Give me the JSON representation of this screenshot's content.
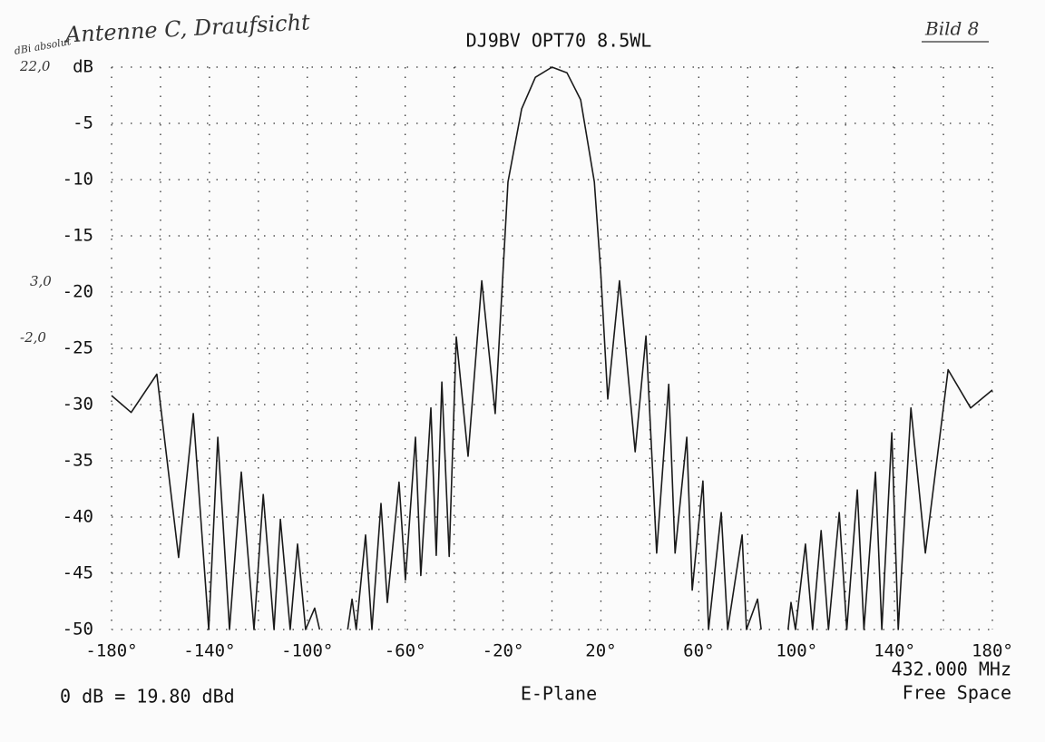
{
  "chart_data": {
    "type": "line",
    "title": "DJ9BV OPT70 8.5WL",
    "x_label": "E-Plane",
    "footer_left": "0 dB = 19.80 dBd",
    "footer_right_1": "432.000 MHz",
    "footer_right_2": "Free Space",
    "handwritten": {
      "caption": "Antenne C, Draufsicht",
      "unit": "dBi absolut",
      "ref_top": "22,0",
      "ref_mid": "3,0",
      "ref_low": "-2,0",
      "figure": "Bild 8"
    },
    "xlim": [
      -180,
      180
    ],
    "ylim": [
      -50,
      0
    ],
    "xticks": [
      {
        "value": -180,
        "label": "-180°"
      },
      {
        "value": -140,
        "label": "-140°"
      },
      {
        "value": -100,
        "label": "-100°"
      },
      {
        "value": -60,
        "label": "-60°"
      },
      {
        "value": -20,
        "label": "-20°"
      },
      {
        "value": 20,
        "label": "20°"
      },
      {
        "value": 60,
        "label": "60°"
      },
      {
        "value": 100,
        "label": "100°"
      },
      {
        "value": 140,
        "label": "140°"
      },
      {
        "value": 180,
        "label": "180°"
      }
    ],
    "xgrid_minor": [
      -160,
      -120,
      -80,
      -40,
      0,
      40,
      80,
      120,
      160
    ],
    "yticks": [
      {
        "value": 0,
        "label": "dB"
      },
      -5,
      -10,
      -15,
      -20,
      -25,
      -30,
      -35,
      -40,
      -45,
      -50
    ],
    "grid": true,
    "grid_style": "dotted",
    "series": [
      {
        "color": "#1a1a1a",
        "x": [
          -180,
          -172,
          -161.5,
          -152.6,
          -146.6,
          -140.3,
          -136.6,
          -131.8,
          -127,
          -121.8,
          -118,
          -113.6,
          -111,
          -107,
          -104,
          -100.7,
          -97,
          -95,
          -88,
          -83.5,
          -81.7,
          -80,
          -76.2,
          -73.6,
          -69.9,
          -67.3,
          -62.5,
          -59.9,
          -55.8,
          -53.6,
          -49.5,
          -47.3,
          -45,
          -42,
          -39.1,
          -34.3,
          -28.7,
          -23.2,
          -18,
          -12.4,
          -6.8,
          0,
          6.1,
          11.7,
          17.3,
          19.9,
          22.8,
          27.6,
          34,
          38.4,
          42.8,
          47.7,
          50.3,
          55.1,
          57.3,
          61.7,
          64,
          69.2,
          71.8,
          77.7,
          79.5,
          84,
          85.5,
          90,
          96.5,
          97.7,
          99.5,
          103.6,
          106.5,
          110,
          113,
          117.4,
          120.5,
          124.8,
          127.5,
          132.2,
          134.8,
          138.9,
          141.5,
          146.7,
          152.6,
          161.9,
          171.1,
          180
        ],
        "values": [
          -29.2,
          -30.7,
          -27.3,
          -43.6,
          -30.8,
          -50,
          -32.9,
          -50,
          -36,
          -50,
          -38,
          -50,
          -40.2,
          -50,
          -42.4,
          -50,
          -48.1,
          -50,
          null,
          -50,
          -47.3,
          -50,
          -41.6,
          -50,
          -38.8,
          -47.6,
          -36.9,
          -45.6,
          -32.9,
          -45.2,
          -30.3,
          -43.4,
          -28,
          -43.5,
          -24,
          -34.6,
          -19,
          -30.8,
          -10.2,
          -3.7,
          -0.9,
          0,
          -0.5,
          -2.9,
          -10.2,
          -18.2,
          -29.5,
          -19,
          -34.2,
          -23.9,
          -43.2,
          -28.2,
          -43.2,
          -32.9,
          -46.5,
          -36.8,
          -50,
          -39.6,
          -50,
          -41.6,
          -50,
          -47.3,
          -50,
          null,
          -50,
          -47.6,
          -50,
          -42.4,
          -50,
          -41.2,
          -50,
          -39.6,
          -50,
          -37.6,
          -50,
          -36,
          -50,
          -32.5,
          -50,
          -30.3,
          -43.2,
          -26.9,
          -30.3,
          -28.7
        ]
      }
    ]
  }
}
